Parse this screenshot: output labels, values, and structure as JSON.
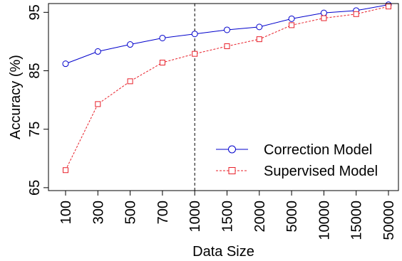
{
  "chart_data": {
    "type": "line",
    "xlabel": "Data Size",
    "ylabel": "Accuracy (%)",
    "categories": [
      "100",
      "300",
      "500",
      "700",
      "1000",
      "1500",
      "2000",
      "5000",
      "10000",
      "15000",
      "50000"
    ],
    "y_ticks": [
      "65",
      "75",
      "85",
      "95"
    ],
    "ylim": [
      64.5,
      96.5
    ],
    "reference_line": "1000",
    "legend_position": "bottom-right",
    "series": [
      {
        "name": "Correction Model",
        "color": "#0000cc",
        "marker": "circle",
        "line_style": "solid",
        "values": [
          86.2,
          88.3,
          89.5,
          90.6,
          91.3,
          92.0,
          92.5,
          93.9,
          94.9,
          95.3,
          96.3
        ]
      },
      {
        "name": "Supervised Model",
        "color": "#e8202a",
        "marker": "square",
        "line_style": "dashed",
        "values": [
          68.0,
          79.3,
          83.2,
          86.4,
          87.9,
          89.2,
          90.4,
          92.8,
          94.0,
          94.7,
          96.0
        ]
      }
    ]
  }
}
